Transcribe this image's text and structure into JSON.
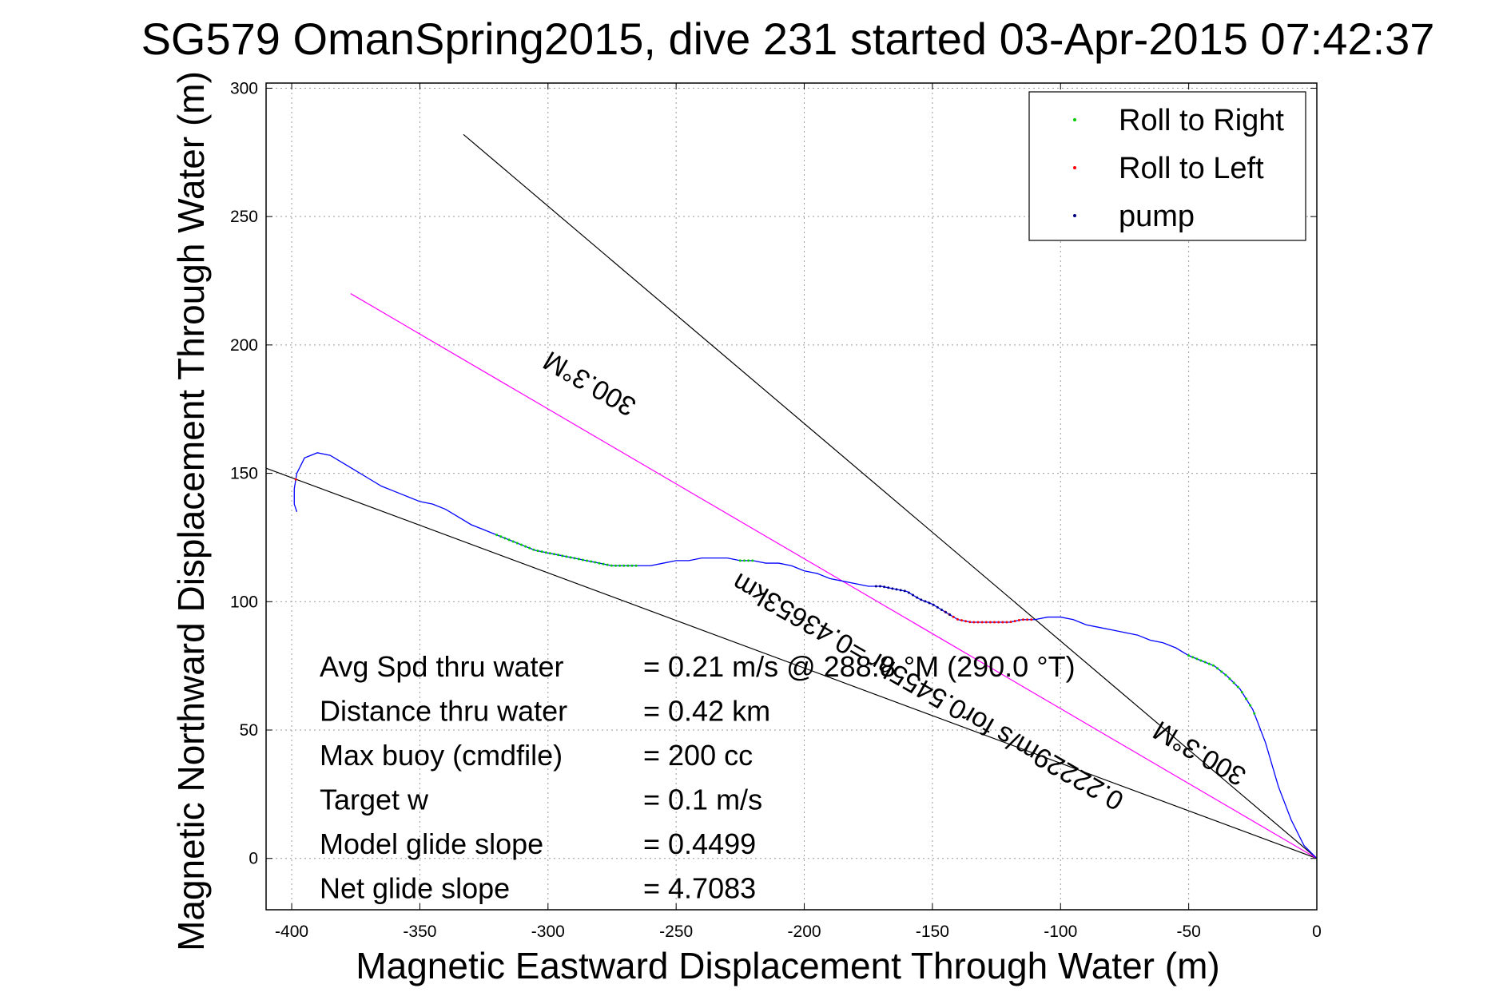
{
  "chart_data": {
    "type": "line",
    "title": "SG579 OmanSpring2015, dive 231 started 03-Apr-2015 07:42:37",
    "xlabel": "Magnetic Eastward Displacement Through Water (m)",
    "ylabel": "Magnetic Northward Displacement Through Water (m)",
    "xlim": [
      -410,
      0
    ],
    "ylim": [
      -20,
      302
    ],
    "xticks": [
      -400,
      -350,
      -300,
      -250,
      -200,
      -150,
      -100,
      -50,
      0
    ],
    "yticks": [
      0,
      50,
      100,
      150,
      200,
      250,
      300
    ],
    "grid": true,
    "legend_position": "top-right",
    "legend": [
      {
        "label": "Roll to Right",
        "color": "#00cc00"
      },
      {
        "label": "Roll to Left",
        "color": "#ff0000"
      },
      {
        "label": "pump",
        "color": "#000080"
      }
    ],
    "track": {
      "color": "#0000ff",
      "x": [
        0,
        -5,
        -10,
        -15,
        -20,
        -25,
        -30,
        -35,
        -40,
        -45,
        -50,
        -55,
        -60,
        -65,
        -70,
        -75,
        -80,
        -85,
        -90,
        -95,
        -100,
        -105,
        -110,
        -115,
        -120,
        -125,
        -130,
        -135,
        -140,
        -145,
        -150,
        -155,
        -160,
        -165,
        -170,
        -175,
        -180,
        -185,
        -190,
        -195,
        -200,
        -205,
        -210,
        -215,
        -220,
        -225,
        -230,
        -235,
        -240,
        -245,
        -250,
        -255,
        -260,
        -265,
        -270,
        -275,
        -280,
        -285,
        -290,
        -295,
        -300,
        -305,
        -310,
        -315,
        -320,
        -325,
        -330,
        -335,
        -340,
        -345,
        -350,
        -355,
        -360,
        -365,
        -370,
        -375,
        -380,
        -385,
        -390,
        -395,
        -398,
        -399,
        -399,
        -398
      ],
      "y": [
        0,
        5,
        15,
        28,
        45,
        58,
        66,
        71,
        75,
        77,
        79,
        82,
        84,
        85,
        87,
        88,
        89,
        90,
        91,
        93,
        94,
        94,
        93,
        93,
        92,
        92,
        92,
        92,
        93,
        96,
        99,
        101,
        104,
        105,
        106,
        106,
        107,
        108,
        109,
        111,
        112,
        114,
        115,
        115,
        116,
        116,
        117,
        117,
        117,
        116,
        116,
        115,
        114,
        114,
        114,
        114,
        115,
        116,
        117,
        118,
        119,
        120,
        122,
        124,
        126,
        128,
        130,
        133,
        136,
        138,
        139,
        141,
        143,
        145,
        148,
        151,
        154,
        157,
        158,
        156,
        150,
        144,
        138,
        135
      ]
    },
    "roll_right_x_ranges": [
      [
        -320,
        -265
      ],
      [
        -50,
        -23
      ],
      [
        -225,
        -220
      ]
    ],
    "roll_left_x_ranges": [
      [
        -145,
        -110
      ],
      [
        -400,
        -397
      ]
    ],
    "pump_x_ranges": [
      [
        -172,
        -143
      ]
    ],
    "lines": [
      {
        "from": [
          0,
          0
        ],
        "to": [
          -333,
          282
        ],
        "color": "#000000"
      },
      {
        "from": [
          0,
          0
        ],
        "to": [
          -410,
          152
        ],
        "color": "#000000"
      },
      {
        "from": [
          0,
          0
        ],
        "to": [
          -377,
          220
        ],
        "color": "#ff00ff"
      }
    ],
    "rotated_labels": [
      {
        "text": "300.3°M",
        "x": -282,
        "y": 188,
        "angle": 210
      },
      {
        "text": "0.22229m/s for0.5455hr =0.43653km",
        "x": -150,
        "y": 68,
        "angle": 210
      },
      {
        "text": "300.3°M",
        "x": -44,
        "y": 44,
        "angle": 210
      }
    ],
    "annotations": [
      {
        "label": "Avg Spd thru water",
        "value": "=  0.21 m/s @ 288.8  °M (290.0 °T)"
      },
      {
        "label": "Distance thru water",
        "value": "=  0.42 km"
      },
      {
        "label": "Max buoy (cmdfile)",
        "value": "= 200 cc"
      },
      {
        "label": "Target w",
        "value": "= 0.1 m/s"
      },
      {
        "label": "Model glide slope",
        "value": "= 0.4499"
      },
      {
        "label": "Net glide slope",
        "value": "= 4.7083"
      }
    ]
  }
}
